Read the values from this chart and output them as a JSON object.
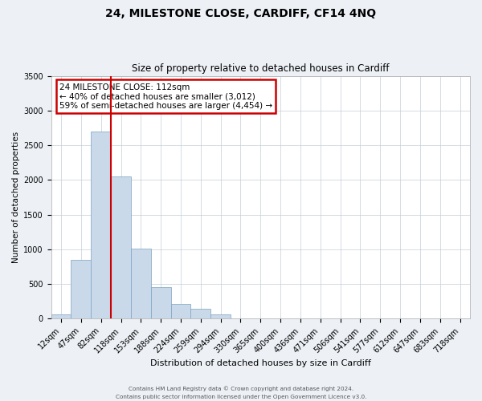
{
  "title": "24, MILESTONE CLOSE, CARDIFF, CF14 4NQ",
  "subtitle": "Size of property relative to detached houses in Cardiff",
  "xlabel": "Distribution of detached houses by size in Cardiff",
  "ylabel": "Number of detached properties",
  "bar_labels": [
    "12sqm",
    "47sqm",
    "82sqm",
    "118sqm",
    "153sqm",
    "188sqm",
    "224sqm",
    "259sqm",
    "294sqm",
    "330sqm",
    "365sqm",
    "400sqm",
    "436sqm",
    "471sqm",
    "506sqm",
    "541sqm",
    "577sqm",
    "612sqm",
    "647sqm",
    "683sqm",
    "718sqm"
  ],
  "bar_values": [
    60,
    850,
    2700,
    2050,
    1010,
    450,
    215,
    145,
    60,
    0,
    0,
    0,
    0,
    0,
    0,
    0,
    0,
    0,
    0,
    0,
    0
  ],
  "bar_color": "#cad9ea",
  "bar_edge_color": "#7ba3c0",
  "vline_x": 3.0,
  "vline_color": "#cc0000",
  "ylim": [
    0,
    3500
  ],
  "yticks": [
    0,
    500,
    1000,
    1500,
    2000,
    2500,
    3000,
    3500
  ],
  "annotation_box_text": "24 MILESTONE CLOSE: 112sqm\n← 40% of detached houses are smaller (3,012)\n59% of semi-detached houses are larger (4,454) →",
  "annotation_box_color": "#cc0000",
  "footer_line1": "Contains HM Land Registry data © Crown copyright and database right 2024.",
  "footer_line2": "Contains public sector information licensed under the Open Government Licence v3.0.",
  "bg_color": "#edf1f6",
  "plot_bg_color": "#ffffff",
  "grid_color": "#c5cdd6",
  "title_fontsize": 10,
  "subtitle_fontsize": 8.5,
  "ylabel_fontsize": 7.5,
  "xlabel_fontsize": 8,
  "tick_fontsize": 7,
  "annot_fontsize": 7.5
}
